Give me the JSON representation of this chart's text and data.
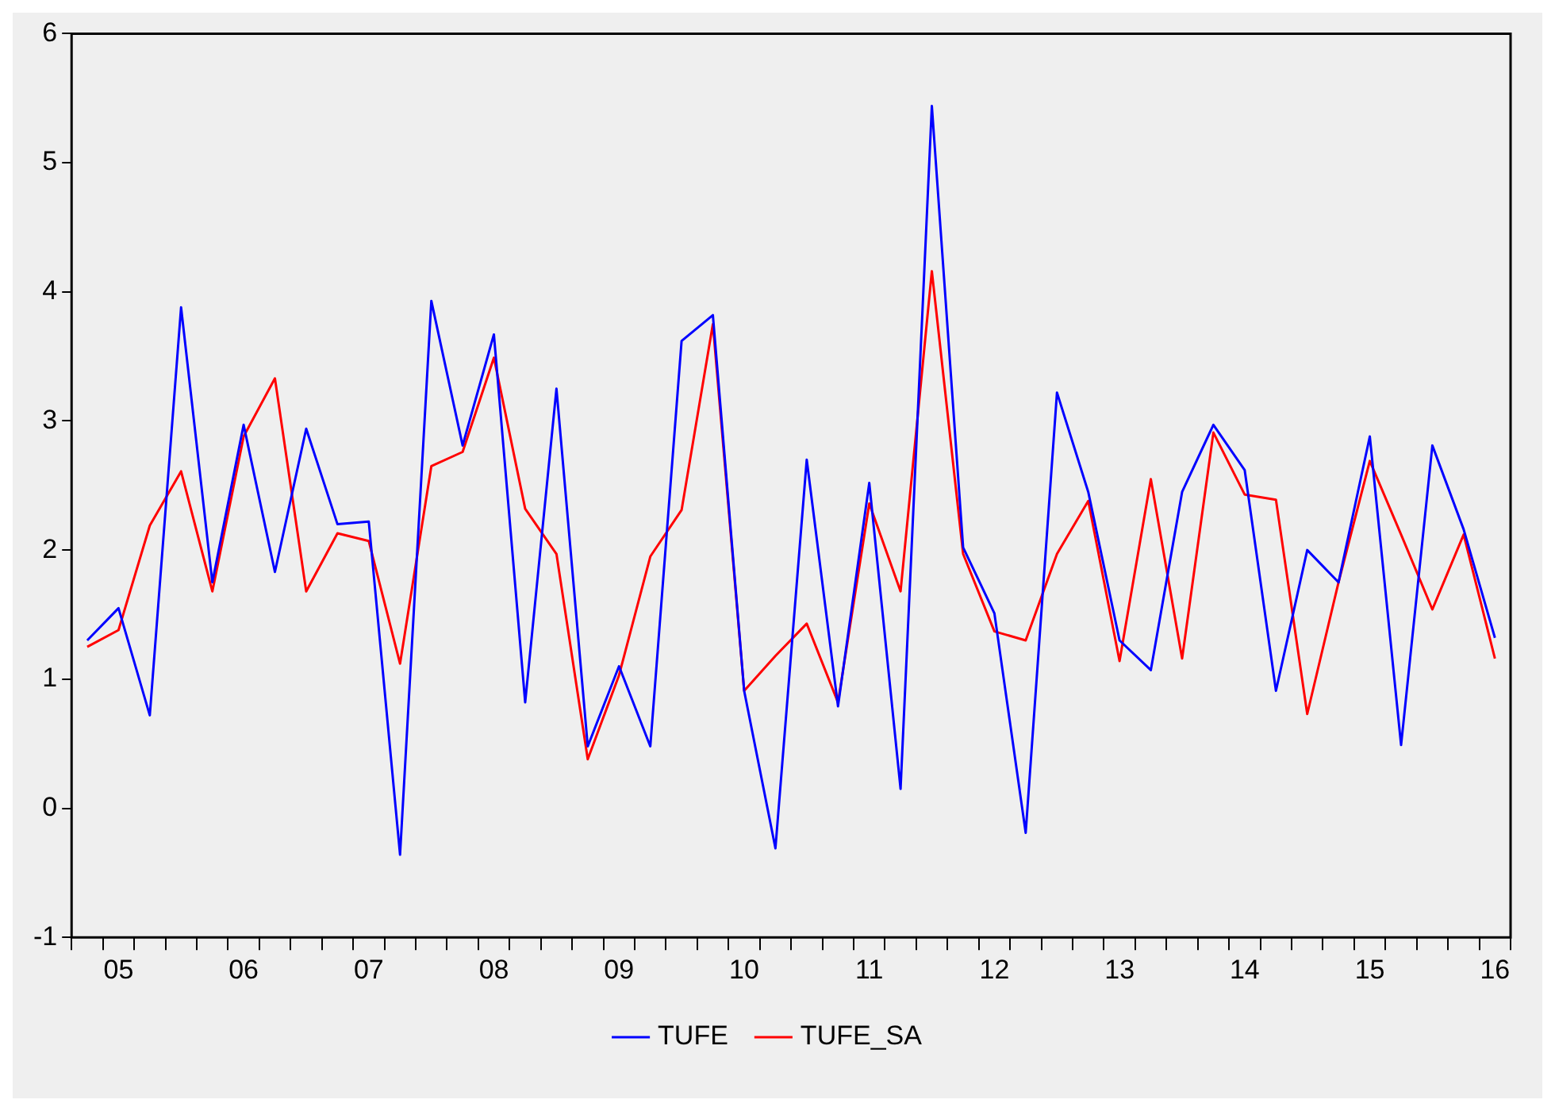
{
  "chart_data": {
    "type": "line",
    "categories": [
      null,
      "05",
      null,
      null,
      null,
      "06",
      null,
      null,
      null,
      "07",
      null,
      null,
      null,
      "08",
      null,
      null,
      null,
      "09",
      null,
      null,
      null,
      "10",
      null,
      null,
      null,
      "11",
      null,
      null,
      null,
      "12",
      null,
      null,
      null,
      "13",
      null,
      null,
      null,
      "14",
      null,
      null,
      null,
      "15",
      null,
      null,
      null,
      "16"
    ],
    "series": [
      {
        "name": "TUFE",
        "color": "#0000ff",
        "values": [
          1.3,
          1.55,
          0.72,
          3.88,
          1.75,
          2.97,
          1.83,
          2.94,
          2.2,
          2.22,
          -0.36,
          3.93,
          2.81,
          3.67,
          0.82,
          3.25,
          0.48,
          1.1,
          0.48,
          3.62,
          3.82,
          0.91,
          -0.31,
          2.7,
          0.79,
          2.52,
          0.15,
          5.44,
          2.02,
          1.51,
          -0.19,
          3.22,
          2.45,
          1.3,
          1.07,
          2.45,
          2.97,
          2.62,
          0.91,
          2.0,
          1.75,
          2.88,
          0.49,
          2.81,
          2.16,
          1.32
        ]
      },
      {
        "name": "TUFE_SA",
        "color": "#ff0000",
        "values": [
          1.25,
          1.38,
          2.19,
          2.61,
          1.68,
          2.88,
          3.33,
          1.68,
          2.13,
          2.07,
          1.12,
          2.65,
          2.76,
          3.49,
          2.32,
          1.97,
          0.38,
          1.03,
          1.95,
          2.31,
          3.75,
          0.91,
          1.18,
          1.43,
          0.82,
          2.36,
          1.68,
          4.16,
          1.97,
          1.37,
          1.3,
          1.97,
          2.38,
          1.14,
          2.55,
          1.16,
          2.91,
          2.43,
          2.39,
          0.73,
          1.75,
          2.69,
          2.12,
          1.54,
          2.12,
          1.16
        ]
      }
    ],
    "ylim": [
      -1,
      6
    ],
    "yticks": [
      -1,
      0,
      1,
      2,
      3,
      4,
      5,
      6
    ],
    "grid": false,
    "legend": "bottom",
    "marker": "none",
    "line_style": "solid"
  }
}
